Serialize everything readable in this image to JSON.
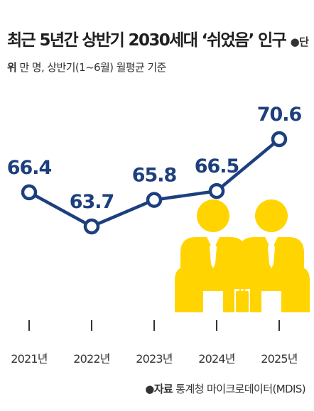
{
  "title": {
    "main": "최근 5년간 상반기 2030세대 ‘쉬었음’ 인구",
    "unit_label": "●단위",
    "unit_text": " 만 명, 상반기(1~6월) 월평균 기준"
  },
  "source": {
    "label": "●자료",
    "text": " 통계청 마이크로데이터(MDIS)"
  },
  "colors": {
    "line": "#1d3f7e",
    "marker_fill": "#ffffff",
    "illustration": "#ffd400",
    "tick": "#333333"
  },
  "illustration": "two-seated-office-workers-icon",
  "chart_data": {
    "type": "line",
    "categories": [
      "2021년",
      "2022년",
      "2023년",
      "2024년",
      "2025년"
    ],
    "values": [
      66.4,
      63.7,
      65.8,
      66.5,
      70.6
    ],
    "data_labels": [
      "66.4",
      "63.7",
      "65.8",
      "66.5",
      "70.6"
    ],
    "title": "최근 5년간 상반기 2030세대 ‘쉬었음’ 인구",
    "unit": "만 명, 상반기(1~6월) 월평균 기준",
    "grid": false,
    "legend": "none"
  }
}
